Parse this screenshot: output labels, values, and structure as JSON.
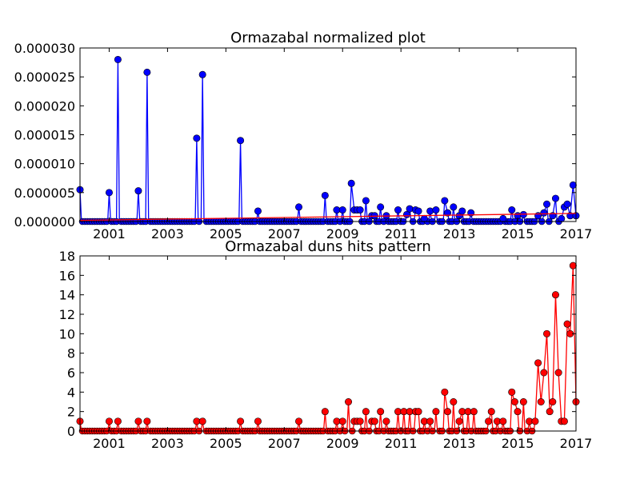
{
  "chart_data": [
    {
      "type": "line",
      "title": "Ormazabal normalized plot",
      "xlim": [
        2000,
        2017
      ],
      "ylim": [
        0,
        3e-05
      ],
      "x_ticks": [
        "2001",
        "2003",
        "2005",
        "2007",
        "2009",
        "2011",
        "2013",
        "2015",
        "2017"
      ],
      "x_tick_values": [
        2001,
        2003,
        2005,
        2007,
        2009,
        2011,
        2013,
        2015,
        2017
      ],
      "y_ticks": [
        "0.000000",
        "0.000005",
        "0.000010",
        "0.000015",
        "0.000020",
        "0.000025",
        "0.000030"
      ],
      "y_tick_values": [
        0,
        5e-06,
        1e-05,
        1.5e-05,
        2e-05,
        2.5e-05,
        3e-05
      ],
      "grid": false,
      "series": [
        {
          "color": "#0000ff",
          "marker": "circle",
          "points": [
            [
              2000.0,
              5.5e-06
            ],
            [
              2001.0,
              5e-06
            ],
            [
              2001.3,
              2.8e-05
            ],
            [
              2002.0,
              5.3e-06
            ],
            [
              2002.3,
              2.58e-05
            ],
            [
              2004.0,
              1.44e-05
            ],
            [
              2004.2,
              2.54e-05
            ],
            [
              2005.5,
              1.4e-05
            ],
            [
              2006.1,
              1.8e-06
            ],
            [
              2007.5,
              2.5e-06
            ],
            [
              2008.4,
              4.5e-06
            ],
            [
              2008.8,
              2e-06
            ],
            [
              2009.0,
              2e-06
            ],
            [
              2009.3,
              6.6e-06
            ],
            [
              2009.4,
              2e-06
            ],
            [
              2009.5,
              2e-06
            ],
            [
              2009.6,
              2e-06
            ],
            [
              2009.8,
              3.6e-06
            ],
            [
              2010.0,
              1e-06
            ],
            [
              2010.1,
              1e-06
            ],
            [
              2010.3,
              2.5e-06
            ],
            [
              2010.5,
              1e-06
            ],
            [
              2010.9,
              2e-06
            ],
            [
              2011.2,
              1.2e-06
            ],
            [
              2011.3,
              2.2e-06
            ],
            [
              2011.5,
              2e-06
            ],
            [
              2011.6,
              1.8e-06
            ],
            [
              2011.8,
              5e-07
            ],
            [
              2012.0,
              1.8e-06
            ],
            [
              2012.2,
              2e-06
            ],
            [
              2012.5,
              3.6e-06
            ],
            [
              2012.6,
              1.5e-06
            ],
            [
              2012.8,
              2.5e-06
            ],
            [
              2013.0,
              1e-06
            ],
            [
              2013.1,
              1.8e-06
            ],
            [
              2013.4,
              1.5e-06
            ],
            [
              2014.5,
              5e-07
            ],
            [
              2014.8,
              2e-06
            ],
            [
              2015.0,
              1e-06
            ],
            [
              2015.2,
              1.2e-06
            ],
            [
              2015.7,
              1e-06
            ],
            [
              2015.9,
              1.5e-06
            ],
            [
              2016.0,
              3e-06
            ],
            [
              2016.2,
              1e-06
            ],
            [
              2016.3,
              4e-06
            ],
            [
              2016.5,
              5e-07
            ],
            [
              2016.6,
              2.5e-06
            ],
            [
              2016.7,
              3e-06
            ],
            [
              2016.8,
              1e-06
            ],
            [
              2016.9,
              6.3e-06
            ],
            [
              2017.0,
              1e-06
            ]
          ]
        },
        {
          "color": "#ff0000",
          "marker": "none",
          "points": [
            [
              2000,
              2e-07
            ],
            [
              2017,
              1.4e-06
            ]
          ]
        }
      ]
    },
    {
      "type": "line",
      "title": "Ormazabal duns hits pattern",
      "xlim": [
        2000,
        2017
      ],
      "ylim": [
        0,
        18
      ],
      "x_ticks": [
        "2001",
        "2003",
        "2005",
        "2007",
        "2009",
        "2011",
        "2013",
        "2015",
        "2017"
      ],
      "x_tick_values": [
        2001,
        2003,
        2005,
        2007,
        2009,
        2011,
        2013,
        2015,
        2017
      ],
      "y_ticks": [
        "0",
        "2",
        "4",
        "6",
        "8",
        "10",
        "12",
        "14",
        "16",
        "18"
      ],
      "y_tick_values": [
        0,
        2,
        4,
        6,
        8,
        10,
        12,
        14,
        16,
        18
      ],
      "grid": false,
      "series": [
        {
          "color": "#ff0000",
          "marker": "circle",
          "points": [
            [
              2000.0,
              1
            ],
            [
              2001.0,
              1
            ],
            [
              2001.3,
              1
            ],
            [
              2002.0,
              1
            ],
            [
              2002.3,
              1
            ],
            [
              2004.0,
              1
            ],
            [
              2004.2,
              1
            ],
            [
              2005.5,
              1
            ],
            [
              2006.1,
              1
            ],
            [
              2007.5,
              1
            ],
            [
              2008.4,
              2
            ],
            [
              2008.8,
              1
            ],
            [
              2009.0,
              1
            ],
            [
              2009.2,
              3
            ],
            [
              2009.4,
              1
            ],
            [
              2009.5,
              1
            ],
            [
              2009.6,
              1
            ],
            [
              2009.8,
              2
            ],
            [
              2010.0,
              1
            ],
            [
              2010.1,
              1
            ],
            [
              2010.3,
              2
            ],
            [
              2010.5,
              1
            ],
            [
              2010.9,
              2
            ],
            [
              2011.1,
              2
            ],
            [
              2011.3,
              2
            ],
            [
              2011.5,
              2
            ],
            [
              2011.6,
              2
            ],
            [
              2011.8,
              1
            ],
            [
              2012.0,
              1
            ],
            [
              2012.2,
              2
            ],
            [
              2012.5,
              4
            ],
            [
              2012.6,
              2
            ],
            [
              2012.8,
              3
            ],
            [
              2013.0,
              1
            ],
            [
              2013.1,
              2
            ],
            [
              2013.3,
              2
            ],
            [
              2013.5,
              2
            ],
            [
              2014.0,
              1
            ],
            [
              2014.1,
              2
            ],
            [
              2014.3,
              1
            ],
            [
              2014.5,
              1
            ],
            [
              2014.8,
              4
            ],
            [
              2014.9,
              3
            ],
            [
              2015.0,
              2
            ],
            [
              2015.2,
              3
            ],
            [
              2015.4,
              1
            ],
            [
              2015.6,
              1
            ],
            [
              2015.7,
              7
            ],
            [
              2015.8,
              3
            ],
            [
              2015.9,
              6
            ],
            [
              2016.0,
              10
            ],
            [
              2016.1,
              2
            ],
            [
              2016.2,
              3
            ],
            [
              2016.3,
              14
            ],
            [
              2016.4,
              6
            ],
            [
              2016.5,
              1
            ],
            [
              2016.6,
              1
            ],
            [
              2016.7,
              11
            ],
            [
              2016.8,
              10
            ],
            [
              2016.9,
              17
            ],
            [
              2017.0,
              3
            ]
          ]
        }
      ]
    }
  ]
}
